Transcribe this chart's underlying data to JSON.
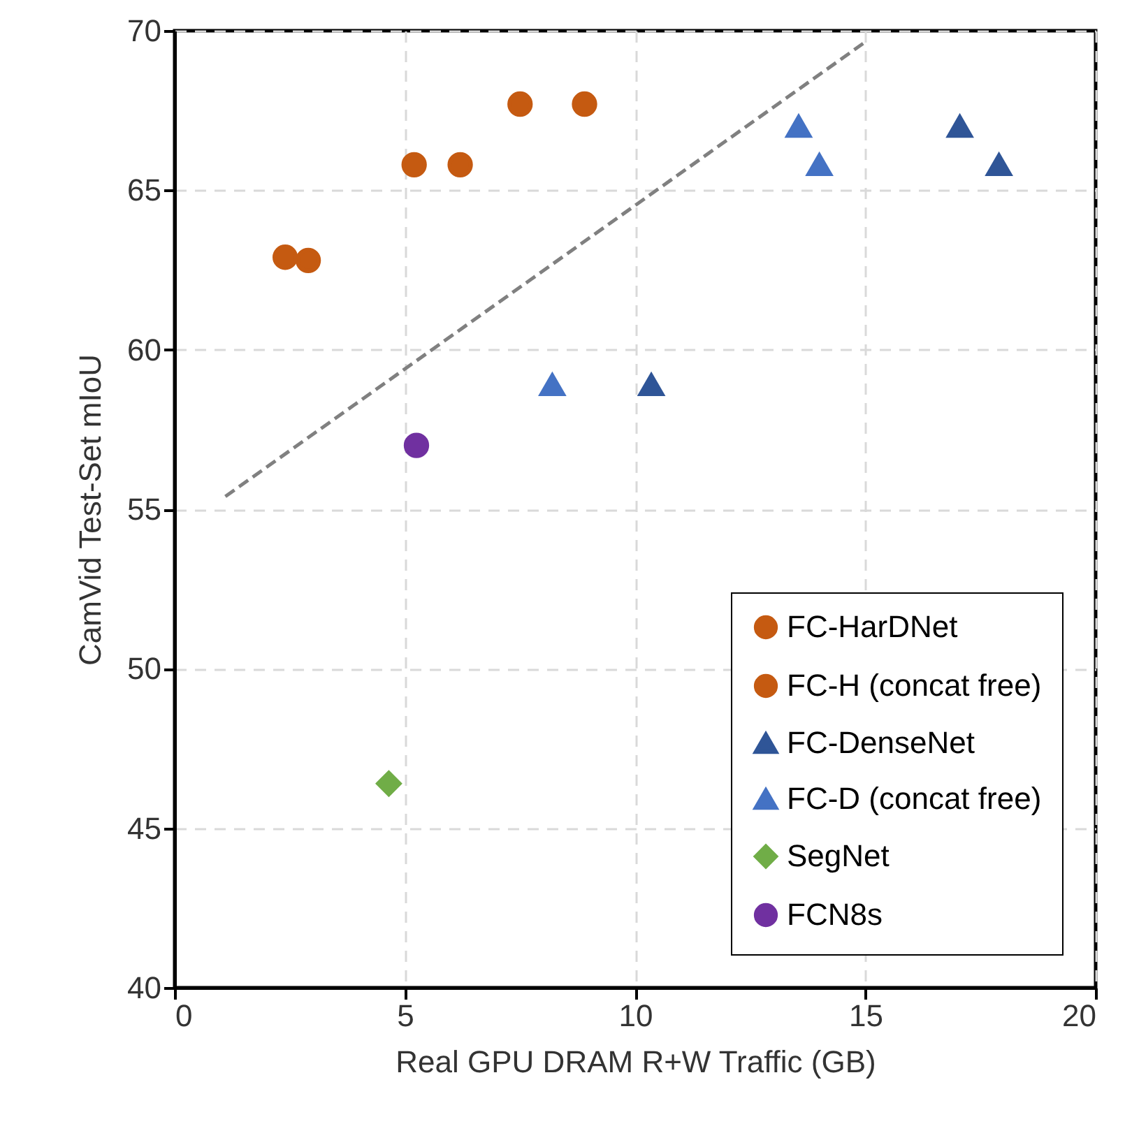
{
  "chart_data": {
    "type": "scatter",
    "xlabel": "Real GPU DRAM R+W Traffic (GB)",
    "ylabel": "CamVid Test-Set mIoU",
    "xlim": [
      0,
      20
    ],
    "xticks": [
      0,
      5,
      10,
      15,
      20
    ],
    "ylim": [
      40,
      70
    ],
    "yticks": [
      40,
      45,
      50,
      55,
      60,
      65,
      70
    ],
    "grid": true,
    "legend": "bottom right",
    "series": [
      {
        "name": "FC-HarDNet",
        "color": "#c55a11",
        "marker": "circle",
        "x": [
          2.9,
          6.2,
          8.9
        ],
        "values": [
          62.8,
          65.8,
          67.7
        ]
      },
      {
        "name": "FC-H (concat free)",
        "color": "#c55a11",
        "marker": "circle",
        "x": [
          2.4,
          5.2,
          7.5
        ],
        "values": [
          62.9,
          65.8,
          67.7
        ]
      },
      {
        "name": "FC-DenseNet",
        "color": "#2f5597",
        "marker": "triangle",
        "x": [
          10.35,
          17.05,
          17.9
        ],
        "values": [
          58.9,
          67.0,
          65.8
        ]
      },
      {
        "name": "FC-D (concat free)",
        "color": "#4472c4",
        "marker": "triangle",
        "x": [
          8.2,
          13.55,
          14.0
        ],
        "values": [
          58.9,
          67.0,
          65.8
        ]
      },
      {
        "name": "SegNet",
        "color": "#70ad47",
        "marker": "diamond",
        "x": [
          4.65
        ],
        "values": [
          46.4
        ]
      },
      {
        "name": "FCN8s",
        "color": "#7030a0",
        "marker": "circle",
        "x": [
          5.25
        ],
        "values": [
          57.0
        ]
      },
      {
        "type": "line",
        "color": "#808080",
        "line_style": "dashed",
        "marker": "none",
        "x": [
          1.1,
          14.95
        ],
        "values": [
          55.4,
          69.6
        ]
      }
    ]
  }
}
